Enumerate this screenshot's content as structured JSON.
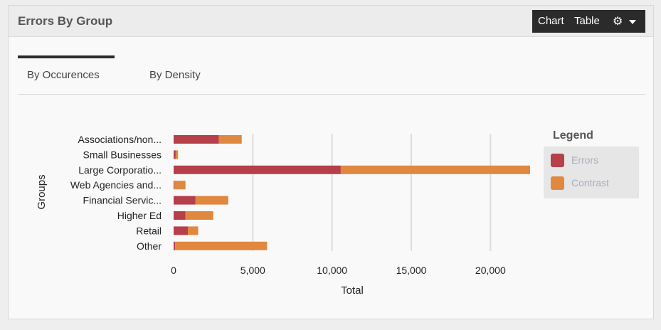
{
  "panel": {
    "title": "Errors By Group",
    "toolbar": {
      "chart_label": "Chart",
      "table_label": "Table",
      "gear_glyph": "⚙"
    }
  },
  "tabs": [
    {
      "label": "By Occurences",
      "active": true
    },
    {
      "label": "By Density",
      "active": false
    }
  ],
  "chart_data": {
    "type": "bar",
    "orientation": "horizontal",
    "stacked": true,
    "categories": [
      "Associations/non...",
      "Small Businesses",
      "Large Corporatio...",
      "Web Agencies and...",
      "Financial Servic...",
      "Higher Ed",
      "Retail",
      "Other"
    ],
    "series": [
      {
        "name": "Errors",
        "color": "#b5404a",
        "values": [
          2850,
          130,
          10550,
          50,
          1370,
          750,
          900,
          100
        ]
      },
      {
        "name": "Contrast",
        "color": "#e0883f",
        "values": [
          1450,
          150,
          11950,
          700,
          2080,
          1750,
          650,
          5800
        ]
      }
    ],
    "xlabel": "Total",
    "ylabel": "Groups",
    "xlim": [
      0,
      22500
    ],
    "xticks": [
      0,
      5000,
      10000,
      15000,
      20000
    ],
    "xtick_labels": [
      "0",
      "5,000",
      "10,000",
      "15,000",
      "20,000"
    ],
    "grid": "vertical",
    "legend": {
      "title": "Legend",
      "position": "right"
    }
  }
}
